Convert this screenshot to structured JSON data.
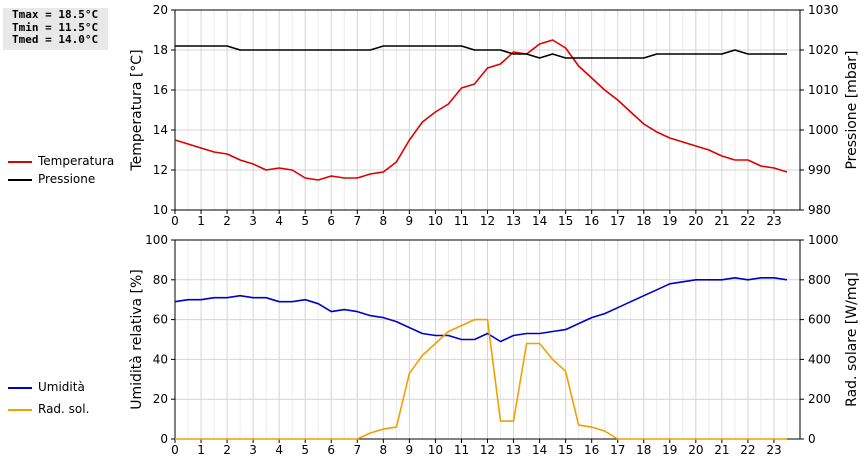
{
  "stats": {
    "tmax": "Tmax = 18.5°C",
    "tmin": "Tmin = 11.5°C",
    "tmed": "Tmed = 14.0°C"
  },
  "chart_data": [
    {
      "type": "line",
      "x": [
        0,
        0.5,
        1,
        1.5,
        2,
        2.5,
        3,
        3.5,
        4,
        4.5,
        5,
        5.5,
        6,
        6.5,
        7,
        7.5,
        8,
        8.5,
        9,
        9.5,
        10,
        10.5,
        11,
        11.5,
        12,
        12.5,
        13,
        13.5,
        14,
        14.5,
        15,
        15.5,
        16,
        16.5,
        17,
        17.5,
        18,
        18.5,
        19,
        19.5,
        20,
        20.5,
        21,
        21.5,
        22,
        22.5,
        23,
        23.5
      ],
      "series": [
        {
          "name": "Temperatura",
          "axis": "left",
          "color": "#dd0000",
          "values": [
            13.5,
            13.3,
            13.1,
            12.9,
            12.8,
            12.5,
            12.3,
            12.0,
            12.1,
            12.0,
            11.6,
            11.5,
            11.7,
            11.6,
            11.6,
            11.8,
            11.9,
            12.4,
            13.5,
            14.4,
            14.9,
            15.3,
            16.1,
            16.3,
            17.1,
            17.3,
            17.9,
            17.8,
            18.3,
            18.5,
            18.1,
            17.2,
            16.6,
            16.0,
            15.5,
            14.9,
            14.3,
            13.9,
            13.6,
            13.4,
            13.2,
            13.0,
            12.7,
            12.5,
            12.5,
            12.2,
            12.1,
            11.9
          ]
        },
        {
          "name": "Pressione",
          "axis": "right",
          "color": "#000000",
          "values": [
            1021,
            1021,
            1021,
            1021,
            1021,
            1020,
            1020,
            1020,
            1020,
            1020,
            1020,
            1020,
            1020,
            1020,
            1020,
            1020,
            1021,
            1021,
            1021,
            1021,
            1021,
            1021,
            1021,
            1020,
            1020,
            1020,
            1019,
            1019,
            1018,
            1019,
            1018,
            1018,
            1018,
            1018,
            1018,
            1018,
            1018,
            1019,
            1019,
            1019,
            1019,
            1019,
            1019,
            1020,
            1019,
            1019,
            1019,
            1019
          ]
        }
      ],
      "xlim": [
        0,
        24
      ],
      "xticks": [
        "0",
        "1",
        "2",
        "3",
        "4",
        "5",
        "6",
        "7",
        "8",
        "9",
        "10",
        "11",
        "12",
        "13",
        "14",
        "15",
        "16",
        "17",
        "18",
        "19",
        "20",
        "21",
        "22",
        "23"
      ],
      "ylabel": "Temperatura [°C]",
      "ylim": [
        10,
        20
      ],
      "yticks": [
        "10",
        "12",
        "14",
        "16",
        "18",
        "20"
      ],
      "y2label": "Pressione [mbar]",
      "y2lim": [
        980,
        1030
      ],
      "y2ticks": [
        "980",
        "990",
        "1000",
        "1010",
        "1020",
        "1030"
      ],
      "grid": true,
      "legend": "left"
    },
    {
      "type": "line",
      "x": [
        0,
        0.5,
        1,
        1.5,
        2,
        2.5,
        3,
        3.5,
        4,
        4.5,
        5,
        5.5,
        6,
        6.5,
        7,
        7.5,
        8,
        8.5,
        9,
        9.5,
        10,
        10.5,
        11,
        11.5,
        12,
        12.5,
        13,
        13.5,
        14,
        14.5,
        15,
        15.5,
        16,
        16.5,
        17,
        17.5,
        18,
        18.5,
        19,
        19.5,
        20,
        20.5,
        21,
        21.5,
        22,
        22.5,
        23,
        23.5
      ],
      "series": [
        {
          "name": "Umidità",
          "axis": "left",
          "color": "#0000cc",
          "values": [
            69,
            70,
            70,
            71,
            71,
            72,
            71,
            71,
            69,
            69,
            70,
            68,
            64,
            65,
            64,
            62,
            61,
            59,
            56,
            53,
            52,
            52,
            50,
            50,
            53,
            49,
            52,
            53,
            53,
            54,
            55,
            58,
            61,
            63,
            66,
            69,
            72,
            75,
            78,
            79,
            80,
            80,
            80,
            81,
            80,
            81,
            81,
            80
          ]
        },
        {
          "name": "Rad. sol.",
          "axis": "right",
          "color": "#f0a000",
          "values": [
            0,
            0,
            0,
            0,
            0,
            0,
            0,
            0,
            0,
            0,
            0,
            0,
            0,
            0,
            0,
            30,
            50,
            60,
            330,
            420,
            480,
            540,
            570,
            600,
            600,
            90,
            90,
            480,
            480,
            400,
            340,
            70,
            60,
            40,
            0,
            0,
            0,
            0,
            0,
            0,
            0,
            0,
            0,
            0,
            0,
            0,
            0,
            0
          ]
        }
      ],
      "xlim": [
        0,
        24
      ],
      "xticks": [
        "0",
        "1",
        "2",
        "3",
        "4",
        "5",
        "6",
        "7",
        "8",
        "9",
        "10",
        "11",
        "12",
        "13",
        "14",
        "15",
        "16",
        "17",
        "18",
        "19",
        "20",
        "21",
        "22",
        "23"
      ],
      "ylabel": "Umidità relativa [%]",
      "ylim": [
        0,
        100
      ],
      "yticks": [
        "0",
        "20",
        "40",
        "60",
        "80",
        "100"
      ],
      "y2label": "Rad. solare [W/mq]",
      "y2lim": [
        0,
        1000
      ],
      "y2ticks": [
        "0",
        "200",
        "400",
        "600",
        "800",
        "1000"
      ],
      "grid": true,
      "legend": "left"
    }
  ]
}
